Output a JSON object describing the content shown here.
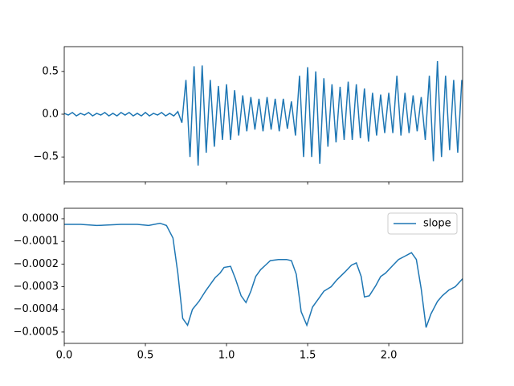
{
  "chart_data": [
    {
      "type": "line",
      "x": [
        0,
        0.025,
        0.05,
        0.075,
        0.1,
        0.125,
        0.15,
        0.175,
        0.2,
        0.225,
        0.25,
        0.275,
        0.3,
        0.325,
        0.35,
        0.375,
        0.4,
        0.425,
        0.45,
        0.475,
        0.5,
        0.525,
        0.55,
        0.575,
        0.6,
        0.625,
        0.65,
        0.675,
        0.7,
        0.725,
        0.75,
        0.775,
        0.8,
        0.825,
        0.85,
        0.875,
        0.9,
        0.925,
        0.95,
        0.975,
        1.0,
        1.025,
        1.05,
        1.075,
        1.1,
        1.125,
        1.15,
        1.175,
        1.2,
        1.225,
        1.25,
        1.275,
        1.3,
        1.325,
        1.35,
        1.375,
        1.4,
        1.425,
        1.45,
        1.475,
        1.5,
        1.525,
        1.55,
        1.575,
        1.6,
        1.625,
        1.65,
        1.675,
        1.7,
        1.725,
        1.75,
        1.775,
        1.8,
        1.825,
        1.85,
        1.875,
        1.9,
        1.925,
        1.95,
        1.975,
        2.0,
        2.025,
        2.05,
        2.075,
        2.1,
        2.125,
        2.15,
        2.175,
        2.2,
        2.225,
        2.25,
        2.275,
        2.3,
        2.325,
        2.35,
        2.375,
        2.4,
        2.425,
        2.45
      ],
      "series": [
        {
          "color": "#1f77b4",
          "values": [
            0.01,
            -0.01,
            0.02,
            -0.02,
            0.01,
            -0.01,
            0.02,
            -0.02,
            0.01,
            -0.01,
            0.02,
            -0.02,
            0.01,
            -0.02,
            0.02,
            -0.01,
            0.02,
            -0.02,
            0.01,
            -0.02,
            0.02,
            -0.02,
            0.01,
            -0.01,
            0.02,
            -0.02,
            0.01,
            -0.02,
            0.03,
            -0.1,
            0.4,
            -0.5,
            0.56,
            -0.6,
            0.57,
            -0.45,
            0.4,
            -0.38,
            0.33,
            -0.3,
            0.35,
            -0.3,
            0.28,
            -0.25,
            0.22,
            -0.2,
            0.2,
            -0.18,
            0.18,
            -0.2,
            0.2,
            -0.18,
            0.18,
            -0.2,
            0.18,
            -0.17,
            0.15,
            -0.25,
            0.45,
            -0.5,
            0.55,
            -0.5,
            0.5,
            -0.58,
            0.42,
            -0.38,
            0.35,
            -0.33,
            0.32,
            -0.3,
            0.38,
            -0.3,
            0.35,
            -0.28,
            0.3,
            -0.32,
            0.25,
            -0.25,
            0.23,
            -0.22,
            0.25,
            -0.22,
            0.45,
            -0.25,
            0.25,
            -0.22,
            0.22,
            -0.2,
            0.2,
            -0.3,
            0.45,
            -0.55,
            0.62,
            -0.5,
            0.45,
            -0.42,
            0.4,
            -0.45,
            0.4
          ]
        }
      ],
      "xlim": [
        0,
        2.455
      ],
      "ylim": [
        -0.79,
        0.79
      ],
      "yticks": [
        {
          "value": -0.5,
          "label": "−0.5"
        },
        {
          "value": 0,
          "label": "0.0"
        },
        0.5
      ]
    },
    {
      "type": "line",
      "x": [
        0,
        0.1,
        0.2,
        0.35,
        0.45,
        0.52,
        0.59,
        0.63,
        0.67,
        0.7,
        0.73,
        0.76,
        0.79,
        0.83,
        0.87,
        0.9,
        0.93,
        0.96,
        0.985,
        1.025,
        1.055,
        1.09,
        1.12,
        1.15,
        1.18,
        1.21,
        1.24,
        1.27,
        1.32,
        1.37,
        1.4,
        1.43,
        1.46,
        1.495,
        1.53,
        1.565,
        1.6,
        1.645,
        1.68,
        1.73,
        1.77,
        1.8,
        1.83,
        1.85,
        1.88,
        1.92,
        1.95,
        1.98,
        2.02,
        2.06,
        2.1,
        2.14,
        2.17,
        2.2,
        2.23,
        2.26,
        2.3,
        2.33,
        2.37,
        2.41,
        2.455
      ],
      "series": [
        {
          "name": "slope",
          "color": "#1f77b4",
          "values": [
            -2.5e-05,
            -2.5e-05,
            -3e-05,
            -2.5e-05,
            -2.5e-05,
            -3e-05,
            -2e-05,
            -3e-05,
            -8.5e-05,
            -0.00024,
            -0.00044,
            -0.00047,
            -0.0004,
            -0.000365,
            -0.00032,
            -0.00029,
            -0.00026,
            -0.00024,
            -0.000215,
            -0.00021,
            -0.000265,
            -0.00034,
            -0.00037,
            -0.00032,
            -0.000255,
            -0.000225,
            -0.000205,
            -0.000185,
            -0.00018,
            -0.00018,
            -0.000185,
            -0.000245,
            -0.00041,
            -0.00047,
            -0.00039,
            -0.000355,
            -0.00032,
            -0.0003,
            -0.00027,
            -0.000235,
            -0.000205,
            -0.000195,
            -0.000255,
            -0.000345,
            -0.00034,
            -0.000295,
            -0.000255,
            -0.00024,
            -0.00021,
            -0.00018,
            -0.000165,
            -0.00015,
            -0.00018,
            -0.00031,
            -0.00048,
            -0.00042,
            -0.000365,
            -0.00034,
            -0.000315,
            -0.0003,
            -0.000265
          ]
        }
      ],
      "xlim": [
        0,
        2.455
      ],
      "ylim": [
        -0.00055,
        4.6e-05
      ],
      "xticks": [
        {
          "value": 0,
          "label": "0.0"
        },
        0.5,
        {
          "value": 1,
          "label": "1.0"
        },
        1.5,
        {
          "value": 2,
          "label": "2.0"
        }
      ],
      "yticks": [
        {
          "value": -0.0005,
          "label": "−0.0005"
        },
        {
          "value": -0.0004,
          "label": "−0.0004"
        },
        {
          "value": -0.0003,
          "label": "−0.0003"
        },
        {
          "value": -0.0002,
          "label": "−0.0002"
        },
        {
          "value": -0.0001,
          "label": "−0.0001"
        },
        {
          "value": 0,
          "label": "0.0000"
        }
      ],
      "legend": "upper right"
    }
  ]
}
